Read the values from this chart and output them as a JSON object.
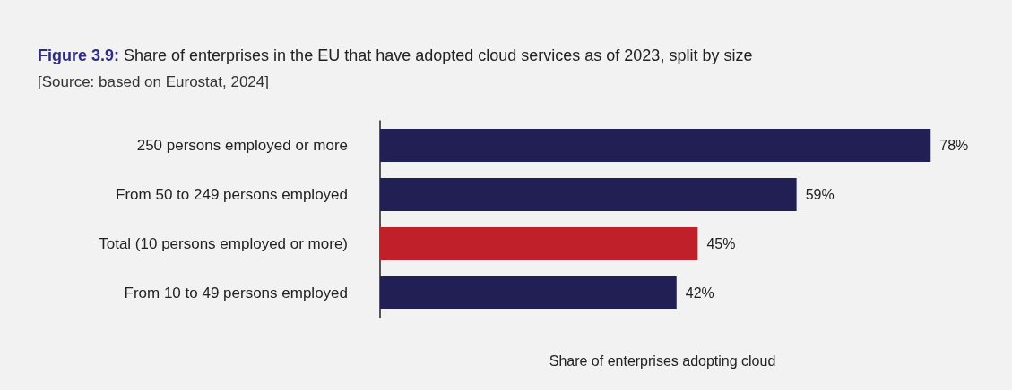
{
  "chart_data": {
    "type": "bar",
    "orientation": "horizontal",
    "title": "Figure 3.9: Share of enterprises in the EU that have adopted cloud services as of 2023, split by size",
    "subtitle": "[Source: based on Eurostat, 2024]",
    "xlabel": "Share of enterprises adopting cloud",
    "categories": [
      "250 persons employed or more",
      "From 50 to 249 persons employed",
      "Total (10 persons employed or more)",
      "From 10 to 49 persons employed"
    ],
    "values": [
      78,
      59,
      45,
      42
    ],
    "colors": [
      "#221f55",
      "#221f55",
      "#c0202a",
      "#221f55"
    ],
    "value_labels": [
      "78%",
      "59%",
      "45%",
      "42%"
    ],
    "grid": false
  }
}
